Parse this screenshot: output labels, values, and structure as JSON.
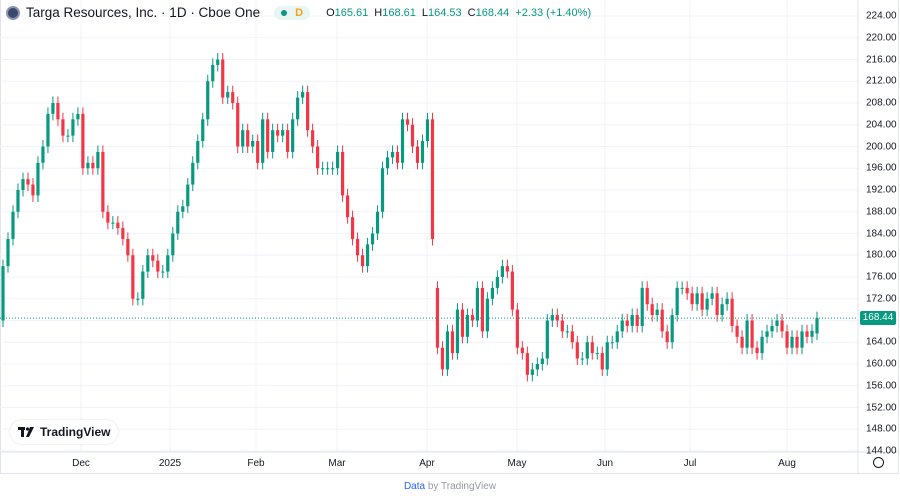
{
  "header": {
    "title": "Targa Resources, Inc. · 1D · Cboe One",
    "interval_badge": "D",
    "ohlc": {
      "o_label": "O",
      "o": "165.61",
      "h_label": "H",
      "h": "168.61",
      "l_label": "L",
      "l": "164.53",
      "c_label": "C",
      "c": "168.44",
      "change": "+2.33 (+1.40%)"
    }
  },
  "logo_text": "TradingView",
  "footer": {
    "data": "Data",
    "by": " by TradingView"
  },
  "colors": {
    "up": "#089981",
    "down": "#f23645",
    "last_price_line": "#089981"
  },
  "chart_data": {
    "type": "candlestick",
    "symbol": "Targa Resources, Inc.",
    "ylim": [
      144,
      224
    ],
    "y_ticks": [
      "224.00",
      "220.00",
      "216.00",
      "212.00",
      "208.00",
      "204.00",
      "200.00",
      "196.00",
      "192.00",
      "188.00",
      "184.00",
      "180.00",
      "176.00",
      "172.00",
      "168.00",
      "164.00",
      "160.00",
      "156.00",
      "152.00",
      "148.00",
      "144.00"
    ],
    "x_ticks": [
      "Dec",
      "2025",
      "Feb",
      "Mar",
      "Apr",
      "May",
      "Jun",
      "Jul",
      "Aug"
    ],
    "last_price": "168.44",
    "grid": true,
    "open": [
      168,
      178,
      183,
      188,
      192,
      194,
      193,
      191,
      197,
      200,
      206,
      208,
      205,
      202,
      202,
      205,
      206,
      196,
      197,
      196,
      199,
      188,
      186,
      186,
      185,
      183,
      180,
      172,
      172,
      177,
      180,
      179,
      177,
      177,
      180,
      184,
      188,
      189,
      193,
      197,
      201,
      205,
      212,
      215,
      216,
      209,
      210,
      208,
      200,
      203,
      200,
      201,
      197,
      205,
      199,
      203,
      202,
      203,
      199,
      205,
      209,
      210,
      203,
      200,
      196,
      196,
      196,
      196,
      199,
      191,
      187,
      183,
      180,
      178,
      182,
      184,
      188,
      196,
      198,
      199,
      197,
      205,
      204,
      200,
      197,
      201,
      205,
      174,
      163,
      159,
      166,
      162,
      170,
      165,
      169,
      168,
      174,
      166,
      172,
      174,
      176,
      178,
      177,
      170,
      163,
      162,
      158,
      159,
      160,
      161,
      168,
      169,
      168,
      166,
      166,
      164,
      161,
      161,
      164,
      162,
      162,
      159,
      164,
      164,
      166,
      168,
      167,
      169,
      167,
      174,
      171,
      169,
      170,
      166,
      164,
      169,
      174,
      174,
      173,
      171,
      173,
      170,
      172,
      173,
      169,
      171,
      172,
      167,
      165,
      163,
      168,
      163,
      162,
      165,
      166,
      167,
      168,
      166,
      163,
      165,
      163,
      166,
      165,
      165.61
    ],
    "close": [
      178,
      183,
      188,
      192,
      194,
      193,
      191,
      197,
      200,
      206,
      208,
      205,
      202,
      202,
      205,
      206,
      196,
      197,
      196,
      199,
      188,
      186,
      186,
      185,
      183,
      180,
      172,
      172,
      177,
      180,
      179,
      177,
      177,
      180,
      184,
      188,
      189,
      193,
      197,
      201,
      205,
      212,
      215,
      216,
      209,
      210,
      208,
      200,
      203,
      200,
      201,
      197,
      205,
      199,
      203,
      202,
      203,
      199,
      205,
      209,
      210,
      203,
      200,
      196,
      196,
      196,
      196,
      199,
      191,
      187,
      183,
      180,
      178,
      182,
      184,
      188,
      196,
      198,
      199,
      197,
      205,
      204,
      200,
      197,
      201,
      205,
      183,
      163,
      159,
      166,
      162,
      170,
      165,
      169,
      168,
      174,
      166,
      172,
      174,
      176,
      178,
      177,
      170,
      163,
      162,
      158,
      159,
      160,
      161,
      168,
      169,
      168,
      166,
      166,
      164,
      161,
      161,
      164,
      162,
      162,
      159,
      164,
      164,
      166,
      168,
      167,
      169,
      167,
      174,
      171,
      169,
      170,
      166,
      164,
      169,
      174,
      174,
      173,
      171,
      173,
      170,
      172,
      173,
      169,
      171,
      172,
      167,
      165,
      163,
      168,
      163,
      162,
      165,
      166,
      167,
      168,
      166,
      163,
      165,
      163,
      166,
      165,
      166.11,
      168.44
    ]
  }
}
